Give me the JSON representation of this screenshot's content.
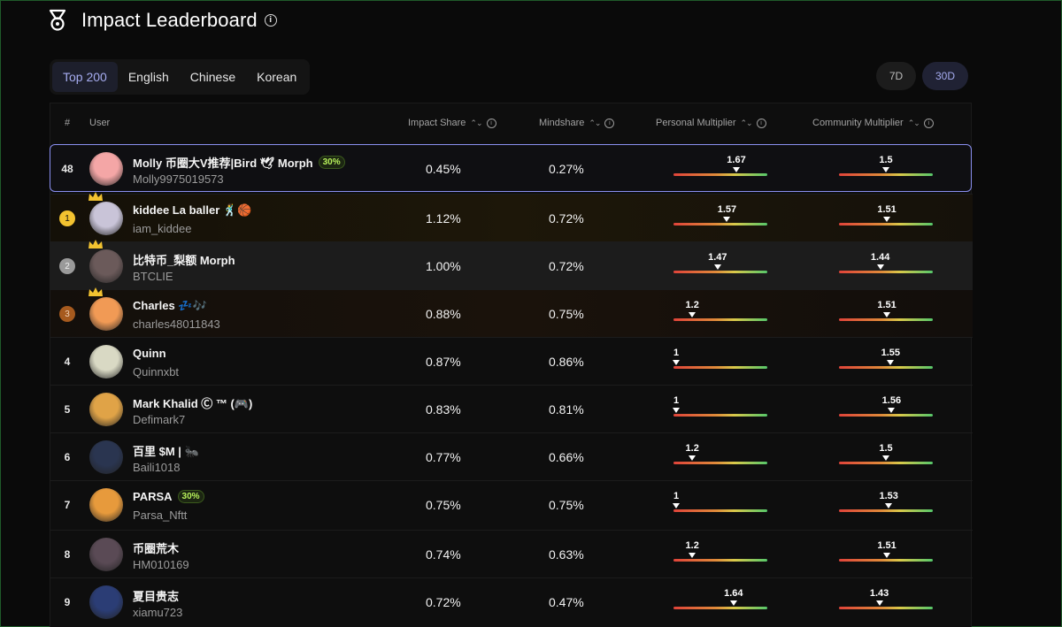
{
  "header": {
    "title": "Impact Leaderboard"
  },
  "tabs": [
    "Top 200",
    "English",
    "Chinese",
    "Korean"
  ],
  "periods": [
    "7D",
    "30D"
  ],
  "columns": {
    "rank": "#",
    "user": "User",
    "impact_share": "Impact Share",
    "mindshare": "Mindshare",
    "personal_multiplier": "Personal Multiplier",
    "community_multiplier": "Community Multiplier"
  },
  "multiplier_scale": [
    1,
    2
  ],
  "rows": [
    {
      "rank": "48",
      "name": "Molly 币圈大V推荐|Bird 🕊 Morph",
      "badge": "30%",
      "handle": "Molly9975019573",
      "impact": "0.45%",
      "mindshare": "0.27%",
      "personal": "1.67",
      "community": "1.5",
      "avatar_color": "#f4a6a6"
    },
    {
      "rank": "1",
      "name": "kiddee La baller 🕺🏀",
      "handle": "iam_kiddee",
      "impact": "1.12%",
      "mindshare": "0.72%",
      "personal": "1.57",
      "community": "1.51",
      "avatar_color": "#c9c4d8"
    },
    {
      "rank": "2",
      "name": "比特币_梨额 Morph",
      "handle": "BTCLIE",
      "impact": "1.00%",
      "mindshare": "0.72%",
      "personal": "1.47",
      "community": "1.44",
      "avatar_color": "#6b5a5a"
    },
    {
      "rank": "3",
      "name": "Charles 💤🎶",
      "handle": "charles48011843",
      "impact": "0.88%",
      "mindshare": "0.75%",
      "personal": "1.2",
      "community": "1.51",
      "avatar_color": "#f19a55"
    },
    {
      "rank": "4",
      "name": "Quinn",
      "handle": "Quinnxbt",
      "impact": "0.87%",
      "mindshare": "0.86%",
      "personal": "1",
      "community": "1.55",
      "avatar_color": "#d9d9c4"
    },
    {
      "rank": "5",
      "name": "Mark Khalid Ⓒ ™ (🎮)",
      "handle": "Defimark7",
      "impact": "0.83%",
      "mindshare": "0.81%",
      "personal": "1",
      "community": "1.56",
      "avatar_color": "#e0a347"
    },
    {
      "rank": "6",
      "name": "百里 $M | 🐜",
      "handle": "Baili1018",
      "impact": "0.77%",
      "mindshare": "0.66%",
      "personal": "1.2",
      "community": "1.5",
      "avatar_color": "#2a3550"
    },
    {
      "rank": "7",
      "name": "PARSA",
      "badge": "30%",
      "handle": "Parsa_Nftt",
      "impact": "0.75%",
      "mindshare": "0.75%",
      "personal": "1",
      "community": "1.53",
      "avatar_color": "#e79a3c"
    },
    {
      "rank": "8",
      "name": "币圈荒木",
      "handle": "HM010169",
      "impact": "0.74%",
      "mindshare": "0.63%",
      "personal": "1.2",
      "community": "1.51",
      "avatar_color": "#5a4a55"
    },
    {
      "rank": "9",
      "name": "夏目贵志",
      "handle": "xiamu723",
      "impact": "0.72%",
      "mindshare": "0.47%",
      "personal": "1.64",
      "community": "1.43",
      "avatar_color": "#2b3d75"
    }
  ],
  "colors": {
    "accent": "#8a8ff0",
    "gold": "#f2c230",
    "silver": "#9a9a9a",
    "bronze": "#a65a1e",
    "badge_green": "#b6f05a"
  }
}
